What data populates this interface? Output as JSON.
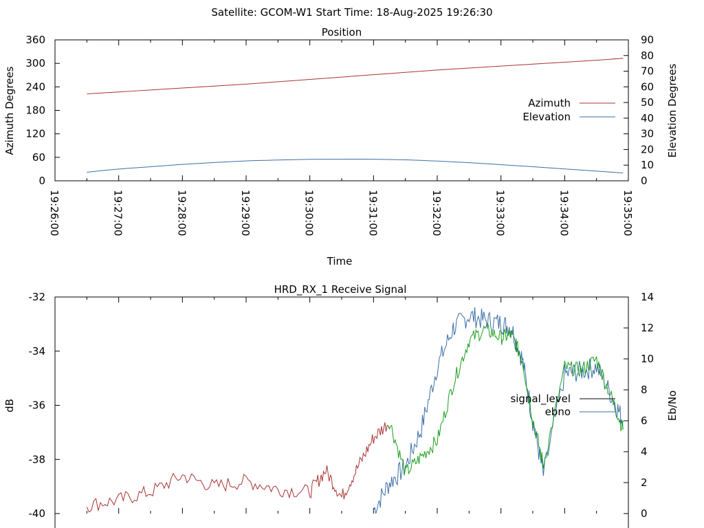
{
  "header": {
    "title": "Satellite: GCOM-W1    Start Time: 18-Aug-2025 19:26:30"
  },
  "chart_data": [
    {
      "type": "line",
      "title": "Position",
      "xlabel": "Time",
      "ylabel_left": "Azimuth Degrees",
      "ylabel_right": "Elevation Degrees",
      "x_ticks": [
        "19:26:00",
        "19:27:00",
        "19:28:00",
        "19:29:00",
        "19:30:00",
        "19:31:00",
        "19:32:00",
        "19:33:00",
        "19:34:00",
        "19:35:00"
      ],
      "y_left_ticks": [
        "0",
        "60",
        "120",
        "180",
        "240",
        "300",
        "360"
      ],
      "y_right_ticks": [
        "0",
        "10",
        "20",
        "30",
        "40",
        "50",
        "60",
        "70",
        "80",
        "90"
      ],
      "ylim_left": [
        0,
        360
      ],
      "ylim_right": [
        0,
        90
      ],
      "legend_position": "right",
      "x": [
        "19:26:30",
        "19:27:00",
        "19:27:30",
        "19:28:00",
        "19:28:30",
        "19:29:00",
        "19:29:30",
        "19:30:00",
        "19:30:30",
        "19:31:00",
        "19:31:30",
        "19:32:00",
        "19:32:30",
        "19:33:00",
        "19:33:30",
        "19:34:00",
        "19:34:30",
        "19:34:55"
      ],
      "series": [
        {
          "name": "Azimuth",
          "axis": "left",
          "color": "#a83232",
          "values": [
            222,
            227,
            232,
            237,
            242,
            247,
            253,
            259,
            265,
            271,
            277,
            283,
            288,
            293,
            298,
            303,
            308,
            313
          ]
        },
        {
          "name": "Elevation",
          "axis": "right",
          "color": "#3a6ea5",
          "values": [
            5.5,
            7.5,
            9.0,
            10.5,
            11.7,
            12.7,
            13.3,
            13.7,
            13.8,
            13.8,
            13.4,
            12.6,
            11.6,
            10.3,
            9.0,
            7.6,
            6.2,
            5.0
          ]
        }
      ]
    },
    {
      "type": "line",
      "title": "HRD_RX_1 Receive Signal",
      "ylabel_left": "dB",
      "ylabel_right": "Eb/No",
      "y_left_ticks": [
        "-40",
        "-38",
        "-36",
        "-34",
        "-32"
      ],
      "y_right_ticks": [
        "0",
        "2",
        "4",
        "6",
        "8",
        "10",
        "12",
        "14"
      ],
      "ylim_left": [
        -40,
        -32
      ],
      "ylim_right": [
        0,
        14
      ],
      "legend_position": "right",
      "x": [
        "19:26:30",
        "19:27:00",
        "19:27:30",
        "19:28:00",
        "19:28:30",
        "19:29:00",
        "19:29:30",
        "19:30:00",
        "19:30:15",
        "19:30:30",
        "19:30:45",
        "19:31:00",
        "19:31:15",
        "19:31:30",
        "19:31:45",
        "19:32:00",
        "19:32:15",
        "19:32:30",
        "19:32:45",
        "19:33:00",
        "19:33:10",
        "19:33:20",
        "19:33:30",
        "19:33:40",
        "19:34:00",
        "19:34:15",
        "19:34:30",
        "19:34:45",
        "19:34:55"
      ],
      "series": [
        {
          "name": "signal_level",
          "axis": "left",
          "color_low": "#a83232",
          "color_high": "#1a9e1a",
          "values": [
            -39.7,
            -39.5,
            -39.2,
            -38.6,
            -39.0,
            -38.8,
            -39.1,
            -39.2,
            -38.4,
            -39.4,
            -38.3,
            -37.2,
            -36.6,
            -38.5,
            -37.9,
            -37.3,
            -35.2,
            -33.6,
            -33.2,
            -33.5,
            -33.4,
            -34.3,
            -36.5,
            -38.2,
            -34.6,
            -34.7,
            -34.3,
            -35.8,
            -36.9
          ]
        },
        {
          "name": "ebno",
          "axis": "right",
          "color": "#3a6ea5",
          "values": [
            null,
            null,
            null,
            null,
            null,
            null,
            null,
            null,
            null,
            null,
            null,
            0.2,
            2.0,
            3.0,
            5.5,
            9.5,
            12.0,
            12.8,
            12.5,
            12.3,
            12.0,
            10.0,
            6.0,
            2.5,
            9.0,
            9.2,
            9.5,
            7.5,
            6.0
          ]
        }
      ]
    }
  ]
}
